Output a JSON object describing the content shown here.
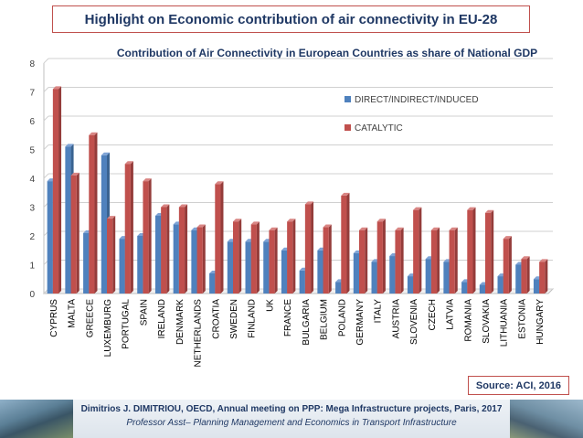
{
  "header": {
    "title": "Highlight on Economic contribution of air connectivity in EU-28"
  },
  "source": "Source: ACI, 2016",
  "footer": {
    "line1": "Dimitrios J. DIMITRIOU, OECD, Annual meeting on PPP: Mega Infrastructure projects, Paris, 2017",
    "line2": "Professor Asst– Planning Management and Economics in Transport Infrastructure"
  },
  "chart_data": {
    "type": "bar",
    "title": "Contribution of Air Connectivity  in European Countries as share of  National GDP",
    "xlabel": "",
    "ylabel": "",
    "ylim": [
      0,
      8
    ],
    "yticks": [
      0,
      1,
      2,
      3,
      4,
      5,
      6,
      7,
      8
    ],
    "grid": true,
    "legend_position": "right",
    "colors": {
      "direct": "#4f81bd",
      "catalytic": "#c0504d"
    },
    "categories": [
      "CYPRUS",
      "MALTA",
      "GREECE",
      "LUXEMBURG",
      "PORTUGAL",
      "SPAIN",
      "IRELAND",
      "DENMARK",
      "NETHERLANDS",
      "CROATIA",
      "SWEDEN",
      "FINLAND",
      "UK",
      "FRANCE",
      "BULGARIA",
      "BELGIUM",
      "POLAND",
      "GERMANY",
      "ITALY",
      "AUSTRIA",
      "SLOVENIA",
      "CZECH",
      "LATVIA",
      "ROMANIA",
      "SLOVAKIA",
      "LITHUANIA",
      "ESTONIA",
      "HUNGARY"
    ],
    "series": [
      {
        "name": "DIRECT/INDIRECT/INDUCED",
        "values": [
          3.9,
          5.1,
          2.1,
          4.8,
          1.9,
          2.0,
          2.7,
          2.4,
          2.2,
          0.7,
          1.8,
          1.8,
          1.8,
          1.5,
          0.8,
          1.5,
          0.4,
          1.4,
          1.1,
          1.3,
          0.6,
          1.2,
          1.1,
          0.4,
          0.3,
          0.6,
          1.0,
          0.5
        ]
      },
      {
        "name": "CATALYTIC",
        "values": [
          7.1,
          4.1,
          5.5,
          2.6,
          4.5,
          3.9,
          3.0,
          3.0,
          2.3,
          3.8,
          2.5,
          2.4,
          2.2,
          2.5,
          3.1,
          2.3,
          3.4,
          2.2,
          2.5,
          2.2,
          2.9,
          2.2,
          2.2,
          2.9,
          2.8,
          1.9,
          1.2,
          1.1
        ]
      }
    ]
  }
}
